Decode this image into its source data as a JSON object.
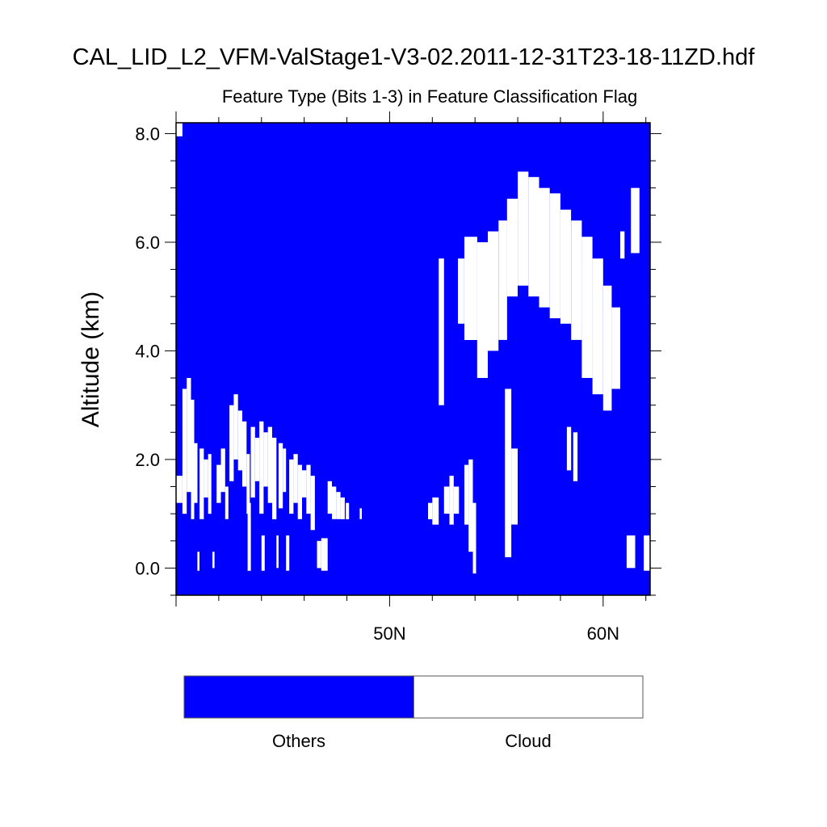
{
  "chart_data": {
    "type": "heatmap",
    "title": "CAL_LID_L2_VFM-ValStage1-V3-02.2011-12-31T23-18-11ZD.hdf",
    "subtitle": "Feature Type (Bits 1-3) in Feature Classification Flag",
    "xlabel": "",
    "ylabel": "Altitude (km)",
    "xlim": [
      40.0,
      62.2
    ],
    "ylim": [
      -0.5,
      8.2
    ],
    "x_ticks": [
      {
        "value": 50,
        "label": "50N"
      },
      {
        "value": 60,
        "label": "60N"
      }
    ],
    "y_ticks": [
      {
        "value": 0,
        "label": "0.0"
      },
      {
        "value": 2,
        "label": "2.0"
      },
      {
        "value": 4,
        "label": "4.0"
      },
      {
        "value": 6,
        "label": "6.0"
      },
      {
        "value": 8,
        "label": "8.0"
      }
    ],
    "background_class": "Others",
    "legend": [
      {
        "label": "Others",
        "color": "#0000ff"
      },
      {
        "label": "Cloud",
        "color": "#ffffff"
      }
    ],
    "legend_position": "bottom",
    "cloud_regions": [
      {
        "lat_start": 40.0,
        "lat_end": 40.3,
        "alt_bottom": 7.95,
        "alt_top": 8.2
      },
      {
        "lat_start": 40.0,
        "lat_end": 40.3,
        "alt_bottom": 1.2,
        "alt_top": 1.7
      },
      {
        "lat_start": 40.3,
        "lat_end": 40.5,
        "alt_bottom": 1.0,
        "alt_top": 3.3
      },
      {
        "lat_start": 40.5,
        "lat_end": 40.7,
        "alt_bottom": 1.4,
        "alt_top": 3.5
      },
      {
        "lat_start": 40.7,
        "lat_end": 40.85,
        "alt_bottom": 0.9,
        "alt_top": 3.1
      },
      {
        "lat_start": 40.85,
        "lat_end": 41.0,
        "alt_bottom": 1.2,
        "alt_top": 2.3
      },
      {
        "lat_start": 41.0,
        "lat_end": 41.1,
        "alt_bottom": -0.05,
        "alt_top": 0.3
      },
      {
        "lat_start": 41.1,
        "lat_end": 41.3,
        "alt_bottom": 0.9,
        "alt_top": 2.2
      },
      {
        "lat_start": 41.3,
        "lat_end": 41.5,
        "alt_bottom": 1.3,
        "alt_top": 2.0
      },
      {
        "lat_start": 41.5,
        "lat_end": 41.65,
        "alt_bottom": 1.0,
        "alt_top": 2.1
      },
      {
        "lat_start": 41.7,
        "lat_end": 41.8,
        "alt_bottom": 0.0,
        "alt_top": 0.3
      },
      {
        "lat_start": 41.9,
        "lat_end": 42.1,
        "alt_bottom": 1.2,
        "alt_top": 1.9
      },
      {
        "lat_start": 42.1,
        "lat_end": 42.3,
        "alt_bottom": 1.4,
        "alt_top": 2.2
      },
      {
        "lat_start": 42.3,
        "lat_end": 42.45,
        "alt_bottom": 0.9,
        "alt_top": 1.5
      },
      {
        "lat_start": 42.5,
        "lat_end": 42.7,
        "alt_bottom": 1.6,
        "alt_top": 3.0
      },
      {
        "lat_start": 42.7,
        "lat_end": 42.9,
        "alt_bottom": 2.0,
        "alt_top": 3.2
      },
      {
        "lat_start": 42.9,
        "lat_end": 43.1,
        "alt_bottom": 1.8,
        "alt_top": 2.9
      },
      {
        "lat_start": 43.1,
        "lat_end": 43.3,
        "alt_bottom": 1.5,
        "alt_top": 2.7
      },
      {
        "lat_start": 43.3,
        "lat_end": 43.45,
        "alt_bottom": 1.0,
        "alt_top": 2.1
      },
      {
        "lat_start": 43.35,
        "lat_end": 43.5,
        "alt_bottom": -0.05,
        "alt_top": 1.2
      },
      {
        "lat_start": 43.5,
        "lat_end": 43.7,
        "alt_bottom": 1.3,
        "alt_top": 2.6
      },
      {
        "lat_start": 43.7,
        "lat_end": 43.9,
        "alt_bottom": 1.6,
        "alt_top": 2.4
      },
      {
        "lat_start": 43.9,
        "lat_end": 44.1,
        "alt_bottom": 1.0,
        "alt_top": 2.7
      },
      {
        "lat_start": 44.0,
        "lat_end": 44.15,
        "alt_bottom": -0.05,
        "alt_top": 0.6
      },
      {
        "lat_start": 44.1,
        "lat_end": 44.3,
        "alt_bottom": 1.5,
        "alt_top": 2.5
      },
      {
        "lat_start": 44.3,
        "lat_end": 44.5,
        "alt_bottom": 1.2,
        "alt_top": 2.6
      },
      {
        "lat_start": 44.5,
        "lat_end": 44.7,
        "alt_bottom": 0.9,
        "alt_top": 2.4
      },
      {
        "lat_start": 44.7,
        "lat_end": 44.8,
        "alt_bottom": 0.0,
        "alt_top": 0.6
      },
      {
        "lat_start": 44.8,
        "lat_end": 45.0,
        "alt_bottom": 1.1,
        "alt_top": 2.3
      },
      {
        "lat_start": 45.0,
        "lat_end": 45.15,
        "alt_bottom": 1.4,
        "alt_top": 2.2
      },
      {
        "lat_start": 45.15,
        "lat_end": 45.3,
        "alt_bottom": -0.05,
        "alt_top": 0.6
      },
      {
        "lat_start": 45.3,
        "lat_end": 45.5,
        "alt_bottom": 1.0,
        "alt_top": 2.0
      },
      {
        "lat_start": 45.5,
        "lat_end": 45.7,
        "alt_bottom": 1.2,
        "alt_top": 2.1
      },
      {
        "lat_start": 45.7,
        "lat_end": 45.9,
        "alt_bottom": 0.9,
        "alt_top": 1.9
      },
      {
        "lat_start": 45.9,
        "lat_end": 46.1,
        "alt_bottom": 1.3,
        "alt_top": 1.8
      },
      {
        "lat_start": 46.1,
        "lat_end": 46.3,
        "alt_bottom": 1.0,
        "alt_top": 1.9
      },
      {
        "lat_start": 46.3,
        "lat_end": 46.5,
        "alt_bottom": 0.7,
        "alt_top": 1.7
      },
      {
        "lat_start": 46.6,
        "lat_end": 46.8,
        "alt_bottom": 0.0,
        "alt_top": 0.5
      },
      {
        "lat_start": 46.8,
        "lat_end": 47.1,
        "alt_bottom": -0.05,
        "alt_top": 0.55
      },
      {
        "lat_start": 47.1,
        "lat_end": 47.3,
        "alt_bottom": 1.0,
        "alt_top": 1.6
      },
      {
        "lat_start": 47.3,
        "lat_end": 47.5,
        "alt_bottom": 0.9,
        "alt_top": 1.5
      },
      {
        "lat_start": 47.5,
        "lat_end": 47.7,
        "alt_bottom": 0.9,
        "alt_top": 1.4
      },
      {
        "lat_start": 47.7,
        "lat_end": 47.9,
        "alt_bottom": 0.9,
        "alt_top": 1.3
      },
      {
        "lat_start": 47.95,
        "lat_end": 48.1,
        "alt_bottom": 0.9,
        "alt_top": 1.2
      },
      {
        "lat_start": 48.6,
        "lat_end": 48.7,
        "alt_bottom": 0.9,
        "alt_top": 1.1
      },
      {
        "lat_start": 51.8,
        "lat_end": 52.0,
        "alt_bottom": 0.9,
        "alt_top": 1.2
      },
      {
        "lat_start": 52.0,
        "lat_end": 52.3,
        "alt_bottom": 0.8,
        "alt_top": 1.3
      },
      {
        "lat_start": 52.3,
        "lat_end": 52.55,
        "alt_bottom": 3.0,
        "alt_top": 5.7
      },
      {
        "lat_start": 52.55,
        "lat_end": 52.8,
        "alt_bottom": 1.0,
        "alt_top": 1.5
      },
      {
        "lat_start": 52.8,
        "lat_end": 53.0,
        "alt_bottom": 0.8,
        "alt_top": 1.7
      },
      {
        "lat_start": 53.0,
        "lat_end": 53.25,
        "alt_bottom": 1.0,
        "alt_top": 1.5
      },
      {
        "lat_start": 53.2,
        "lat_end": 53.5,
        "alt_bottom": 4.5,
        "alt_top": 5.7
      },
      {
        "lat_start": 53.5,
        "lat_end": 53.7,
        "alt_bottom": 0.8,
        "alt_top": 1.9
      },
      {
        "lat_start": 53.7,
        "lat_end": 53.9,
        "alt_bottom": 0.3,
        "alt_top": 2.0
      },
      {
        "lat_start": 53.9,
        "lat_end": 54.05,
        "alt_bottom": -0.1,
        "alt_top": 1.2
      },
      {
        "lat_start": 53.5,
        "lat_end": 54.1,
        "alt_bottom": 4.2,
        "alt_top": 6.1
      },
      {
        "lat_start": 54.1,
        "lat_end": 54.6,
        "alt_bottom": 3.5,
        "alt_top": 6.0
      },
      {
        "lat_start": 54.6,
        "lat_end": 55.1,
        "alt_bottom": 4.0,
        "alt_top": 6.2
      },
      {
        "lat_start": 55.1,
        "lat_end": 55.5,
        "alt_bottom": 4.2,
        "alt_top": 6.4
      },
      {
        "lat_start": 55.4,
        "lat_end": 55.7,
        "alt_bottom": 0.2,
        "alt_top": 3.3
      },
      {
        "lat_start": 55.7,
        "lat_end": 56.0,
        "alt_bottom": 0.8,
        "alt_top": 2.2
      },
      {
        "lat_start": 55.5,
        "lat_end": 56.0,
        "alt_bottom": 5.0,
        "alt_top": 6.8
      },
      {
        "lat_start": 56.0,
        "lat_end": 56.5,
        "alt_bottom": 5.2,
        "alt_top": 7.3
      },
      {
        "lat_start": 56.5,
        "lat_end": 57.0,
        "alt_bottom": 5.0,
        "alt_top": 7.2
      },
      {
        "lat_start": 57.0,
        "lat_end": 57.5,
        "alt_bottom": 4.8,
        "alt_top": 7.0
      },
      {
        "lat_start": 57.5,
        "lat_end": 58.0,
        "alt_bottom": 4.6,
        "alt_top": 6.9
      },
      {
        "lat_start": 58.0,
        "lat_end": 58.5,
        "alt_bottom": 4.5,
        "alt_top": 6.6
      },
      {
        "lat_start": 58.5,
        "lat_end": 59.0,
        "alt_bottom": 4.2,
        "alt_top": 6.4
      },
      {
        "lat_start": 59.0,
        "lat_end": 59.5,
        "alt_bottom": 3.5,
        "alt_top": 6.1
      },
      {
        "lat_start": 59.5,
        "lat_end": 60.0,
        "alt_bottom": 3.2,
        "alt_top": 5.7
      },
      {
        "lat_start": 60.0,
        "lat_end": 60.4,
        "alt_bottom": 2.9,
        "alt_top": 5.2
      },
      {
        "lat_start": 60.4,
        "lat_end": 60.8,
        "alt_bottom": 3.3,
        "alt_top": 4.8
      },
      {
        "lat_start": 58.3,
        "lat_end": 58.5,
        "alt_bottom": 1.8,
        "alt_top": 2.6
      },
      {
        "lat_start": 58.6,
        "lat_end": 58.8,
        "alt_bottom": 1.6,
        "alt_top": 2.5
      },
      {
        "lat_start": 60.8,
        "lat_end": 61.0,
        "alt_bottom": 5.7,
        "alt_top": 6.2
      },
      {
        "lat_start": 61.3,
        "lat_end": 61.7,
        "alt_bottom": 5.8,
        "alt_top": 7.0
      },
      {
        "lat_start": 61.1,
        "lat_end": 61.5,
        "alt_bottom": 0.0,
        "alt_top": 0.6
      },
      {
        "lat_start": 61.9,
        "lat_end": 62.2,
        "alt_bottom": -0.05,
        "alt_top": 0.6
      }
    ]
  }
}
